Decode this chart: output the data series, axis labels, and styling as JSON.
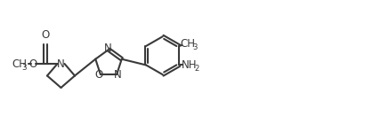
{
  "background_color": "#ffffff",
  "line_color": "#3a3a3a",
  "line_width": 1.5,
  "font_size": 8.5,
  "figsize": [
    4.28,
    1.4
  ],
  "dpi": 100,
  "xlim": [
    0,
    4.28
  ],
  "ylim": [
    0,
    1.4
  ]
}
